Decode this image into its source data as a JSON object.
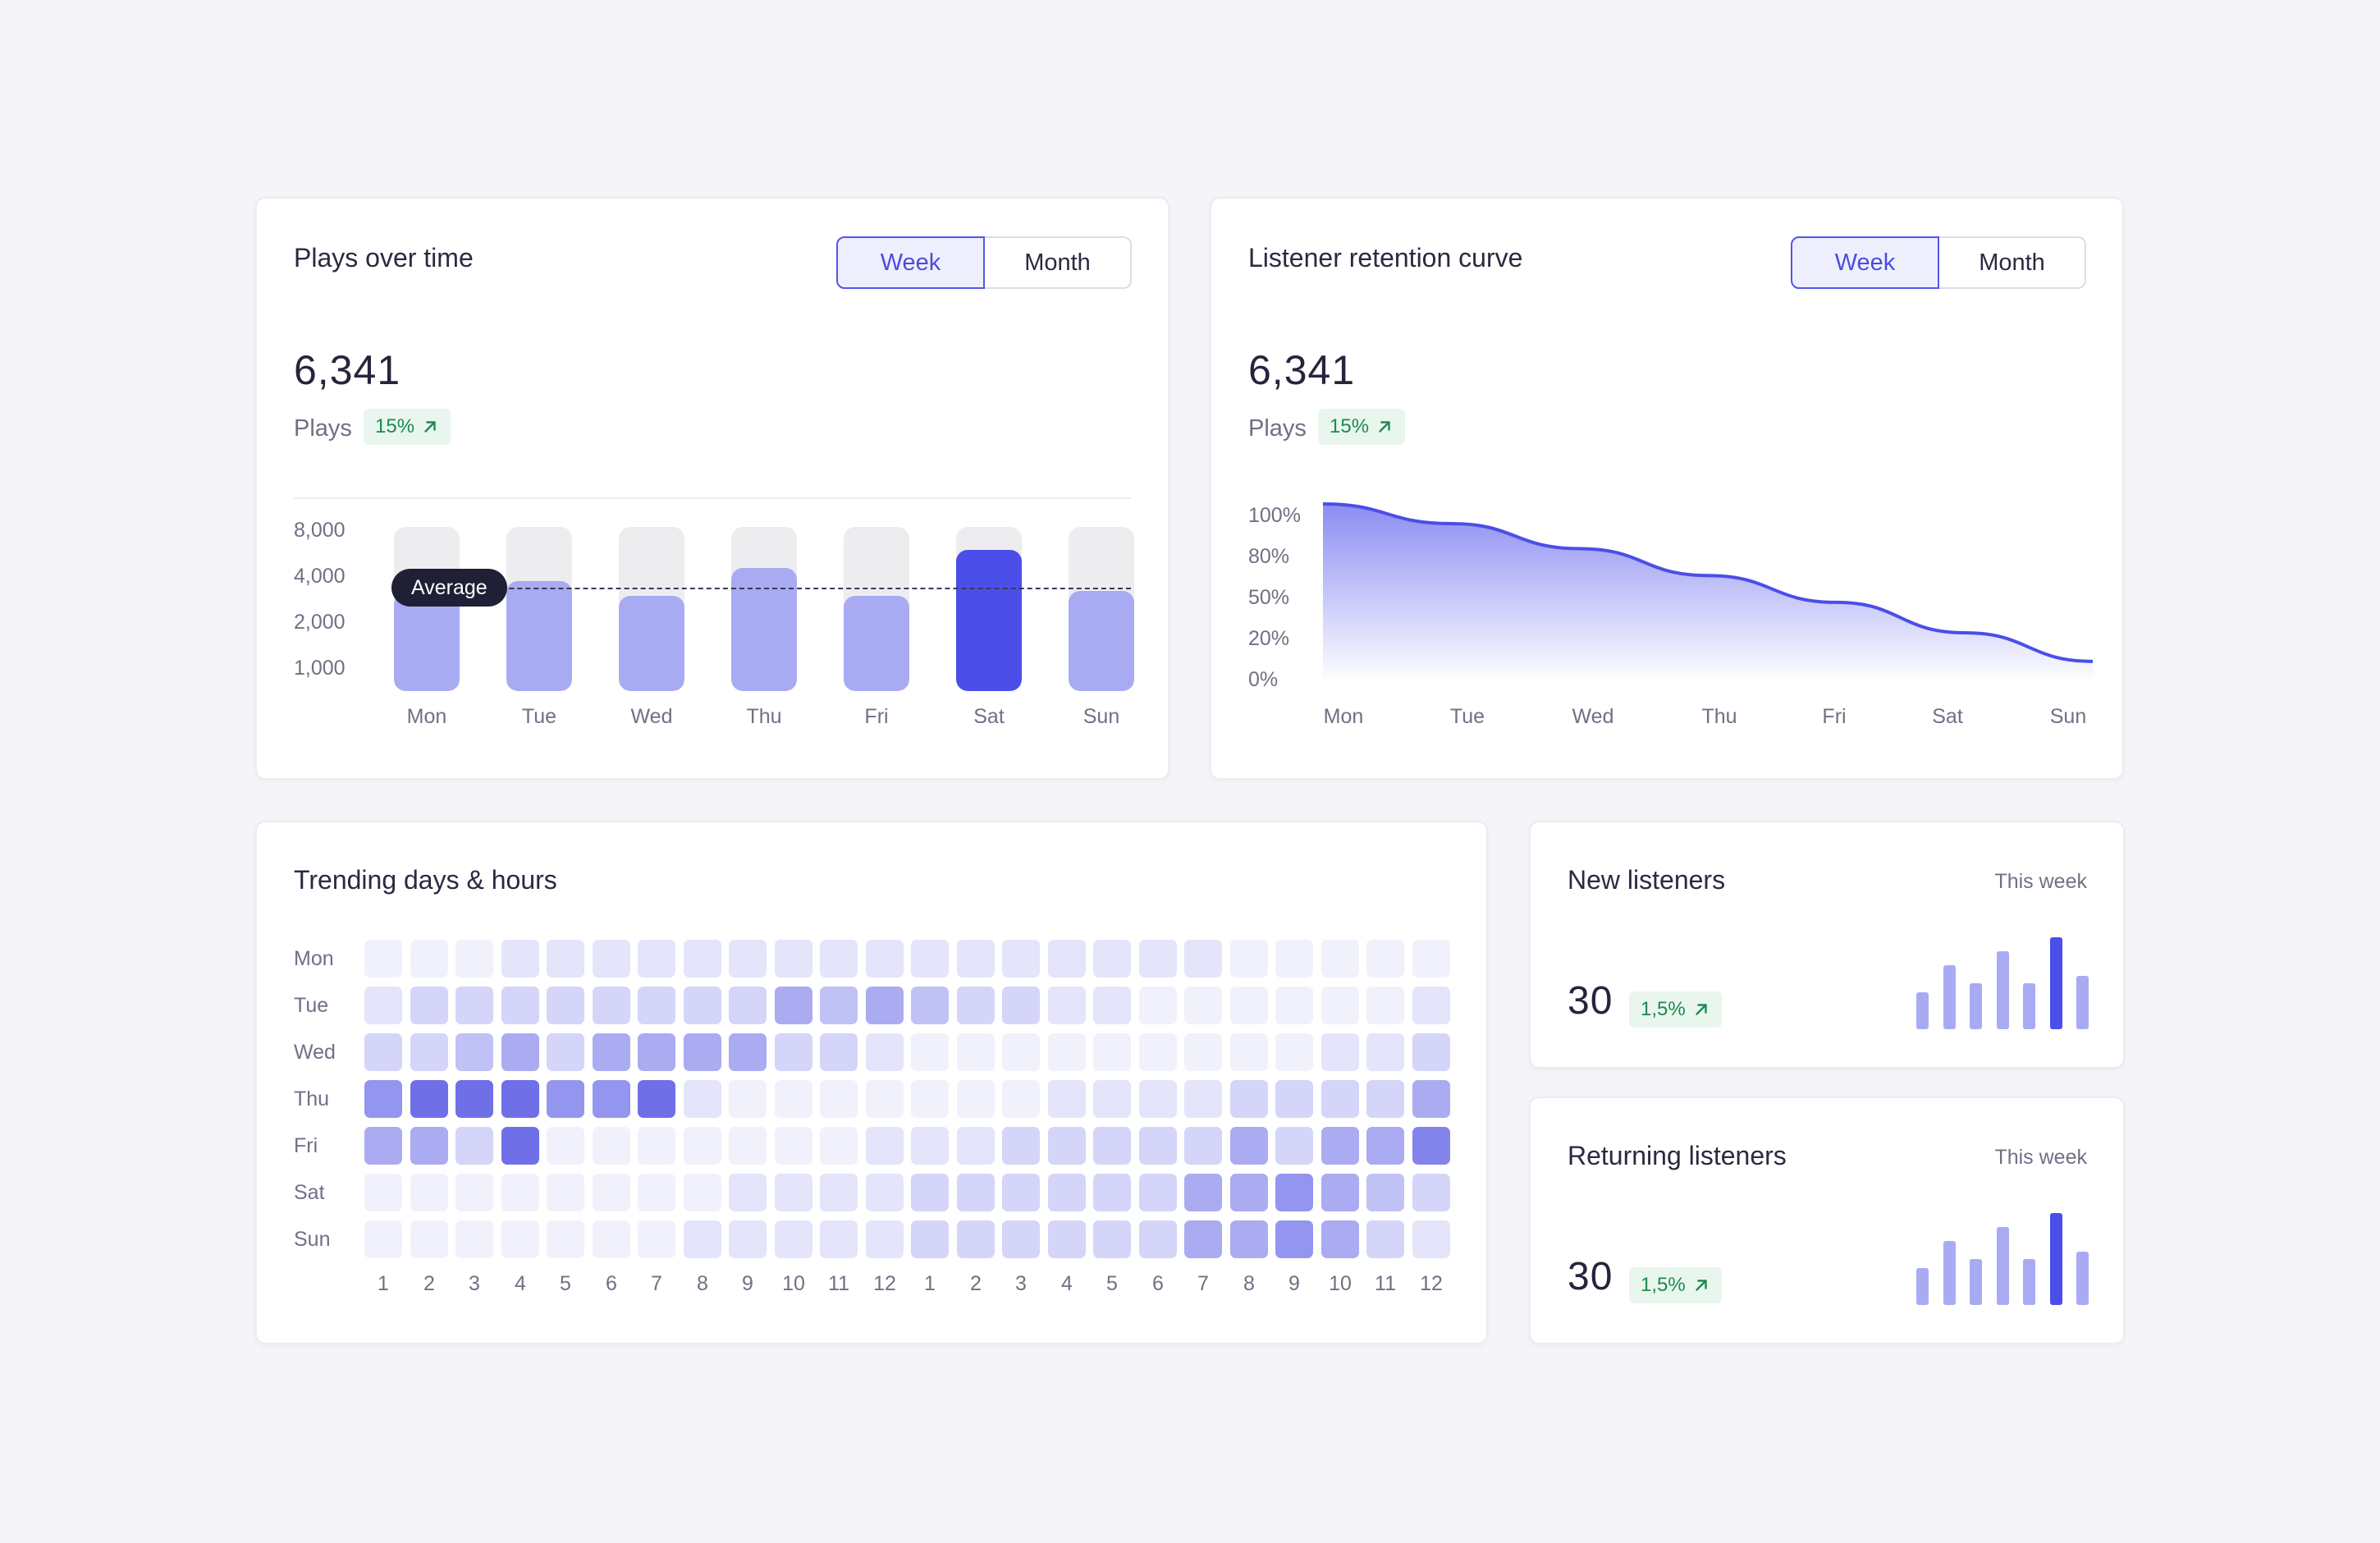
{
  "colors": {
    "accent": "#4b4ee8",
    "bar_light": "#a9abf2",
    "track": "#ededf0",
    "positive": "#1d8a50",
    "positive_bg": "#e9f6ee"
  },
  "plays_card": {
    "title": "Plays over time",
    "tabs": [
      "Week",
      "Month"
    ],
    "active_tab": "Week",
    "value": "6,341",
    "label": "Plays",
    "change": "15%",
    "change_icon": "arrow-up-right-icon",
    "average_label": "Average"
  },
  "retention_card": {
    "title": "Listener retention curve",
    "tabs": [
      "Week",
      "Month"
    ],
    "active_tab": "Week",
    "value": "6,341",
    "label": "Plays",
    "change": "15%",
    "change_icon": "arrow-up-right-icon"
  },
  "trending_card": {
    "title": "Trending days & hours"
  },
  "new_listeners": {
    "title": "New listeners",
    "period": "This week",
    "value": "30",
    "change": "1,5%",
    "change_icon": "arrow-up-right-icon",
    "bars": [
      0.4,
      0.7,
      0.5,
      0.85,
      0.5,
      1.0,
      0.58
    ],
    "highlight_index": 5
  },
  "returning_listeners": {
    "title": "Returning listeners",
    "period": "This week",
    "value": "30",
    "change": "1,5%",
    "change_icon": "arrow-up-right-icon",
    "bars": [
      0.4,
      0.7,
      0.5,
      0.85,
      0.5,
      1.0,
      0.58
    ],
    "highlight_index": 5
  },
  "chart_data": [
    {
      "type": "bar",
      "categories": [
        "Mon",
        "Tue",
        "Wed",
        "Thu",
        "Fri",
        "Sat",
        "Sun"
      ],
      "yticks": [
        "8,000",
        "4,000",
        "2,000",
        "1,000"
      ],
      "values": [
        3800,
        4300,
        3700,
        4800,
        3700,
        5500,
        3900
      ],
      "max": 8000,
      "average": 4000,
      "highlight_index": 5
    },
    {
      "type": "area",
      "categories": [
        "Mon",
        "Tue",
        "Wed",
        "Thu",
        "Fri",
        "Sat",
        "Sun"
      ],
      "yticks": [
        "100%",
        "80%",
        "50%",
        "20%",
        "0%"
      ],
      "values": [
        100,
        89,
        75,
        60,
        45,
        28,
        12
      ],
      "ylim": [
        0,
        100
      ]
    },
    {
      "type": "heatmap",
      "rows": [
        "Mon",
        "Tue",
        "Wed",
        "Thu",
        "Fri",
        "Sat",
        "Sun"
      ],
      "columns": [
        "1",
        "2",
        "3",
        "4",
        "5",
        "6",
        "7",
        "8",
        "9",
        "10",
        "11",
        "12",
        "1",
        "2",
        "3",
        "4",
        "5",
        "6",
        "7",
        "8",
        "9",
        "10",
        "11",
        "12"
      ],
      "values": [
        [
          1,
          1,
          1,
          2,
          2,
          2,
          2,
          2,
          2,
          2,
          2,
          2,
          2,
          2,
          2,
          2,
          2,
          2,
          2,
          1,
          1,
          1,
          1,
          1
        ],
        [
          2,
          3,
          3,
          3,
          3,
          3,
          3,
          3,
          3,
          5,
          4,
          5,
          4,
          3,
          3,
          2,
          2,
          1,
          1,
          1,
          1,
          1,
          1,
          2
        ],
        [
          3,
          3,
          4,
          5,
          3,
          5,
          5,
          5,
          5,
          3,
          3,
          2,
          1,
          1,
          1,
          1,
          1,
          1,
          1,
          1,
          1,
          2,
          2,
          3
        ],
        [
          6,
          8,
          8,
          8,
          6,
          6,
          8,
          2,
          1,
          1,
          1,
          1,
          1,
          1,
          1,
          2,
          2,
          2,
          2,
          3,
          3,
          3,
          3,
          5
        ],
        [
          5,
          5,
          3,
          8,
          1,
          1,
          1,
          1,
          1,
          1,
          1,
          2,
          2,
          2,
          3,
          3,
          3,
          3,
          3,
          5,
          3,
          5,
          5,
          7
        ],
        [
          1,
          1,
          1,
          1,
          1,
          1,
          1,
          1,
          2,
          2,
          2,
          2,
          3,
          3,
          3,
          3,
          3,
          3,
          5,
          5,
          6,
          5,
          4,
          3
        ],
        [
          1,
          1,
          1,
          1,
          1,
          1,
          1,
          2,
          2,
          2,
          2,
          2,
          3,
          3,
          3,
          3,
          3,
          3,
          5,
          5,
          6,
          5,
          3,
          2
        ]
      ],
      "scale_max": 8
    }
  ]
}
